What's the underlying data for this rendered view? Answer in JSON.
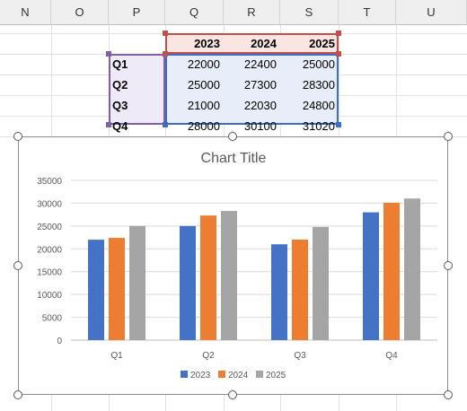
{
  "sheet": {
    "columns": [
      "N",
      "O",
      "P",
      "Q",
      "R",
      "S",
      "T",
      "U"
    ],
    "header_row": [
      "2023",
      "2024",
      "2025"
    ],
    "rows": [
      {
        "label": "Q1",
        "values": [
          "22000",
          "22400",
          "25000"
        ]
      },
      {
        "label": "Q2",
        "values": [
          "25000",
          "27300",
          "28300"
        ]
      },
      {
        "label": "Q3",
        "values": [
          "21000",
          "22030",
          "24800"
        ]
      },
      {
        "label": "Q4",
        "values": [
          "28000",
          "30100",
          "31020"
        ]
      }
    ]
  },
  "colors": {
    "series_range": "#c0504d",
    "category_range": "#7f5fa8",
    "values_range": "#3d6fc1",
    "series_fill": "#fbe5e3",
    "category_fill": "#eeeaf7",
    "values_fill": "#e8eef9"
  },
  "chart_data": {
    "type": "bar",
    "title": "Chart Title",
    "categories": [
      "Q1",
      "Q2",
      "Q3",
      "Q4"
    ],
    "series": [
      {
        "name": "2023",
        "color": "#4472c4",
        "values": [
          22000,
          25000,
          21000,
          28000
        ]
      },
      {
        "name": "2024",
        "color": "#ed7d31",
        "values": [
          22400,
          27300,
          22030,
          30100
        ]
      },
      {
        "name": "2025",
        "color": "#a5a5a5",
        "values": [
          25000,
          28300,
          24800,
          31020
        ]
      }
    ],
    "ylim": [
      0,
      35000
    ],
    "yticks": [
      "0",
      "5000",
      "10000",
      "15000",
      "20000",
      "25000",
      "30000",
      "35000"
    ],
    "grid": true,
    "legend": "bottom"
  }
}
